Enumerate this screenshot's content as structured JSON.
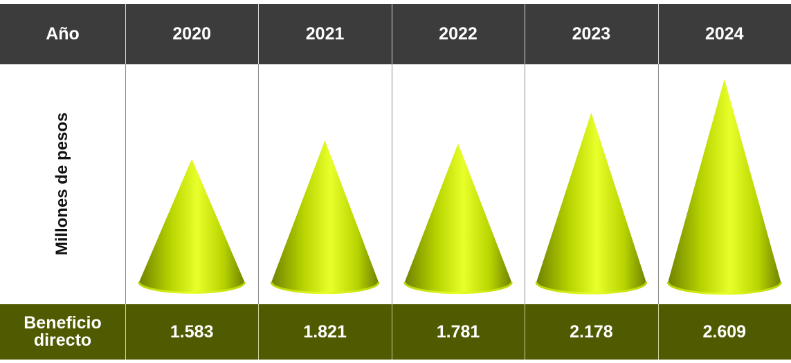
{
  "chart_data": {
    "type": "bar",
    "header_label": "Año",
    "ylabel": "Millones de pesos",
    "row_label_line1": "Beneficio",
    "row_label_line2": "directo",
    "categories": [
      "2020",
      "2021",
      "2022",
      "2023",
      "2024"
    ],
    "value_labels": [
      "1.583",
      "1.821",
      "1.781",
      "2.178",
      "2.609"
    ],
    "values": [
      1583,
      1821,
      1781,
      2178,
      2609
    ],
    "ylim": [
      0,
      2700
    ],
    "colors": {
      "header_bg": "#3c3c3c",
      "footer_bg": "#505a00",
      "cone_light": "#e8ff2a",
      "cone_mid": "#b8d400",
      "cone_dark": "#6f8200"
    }
  }
}
